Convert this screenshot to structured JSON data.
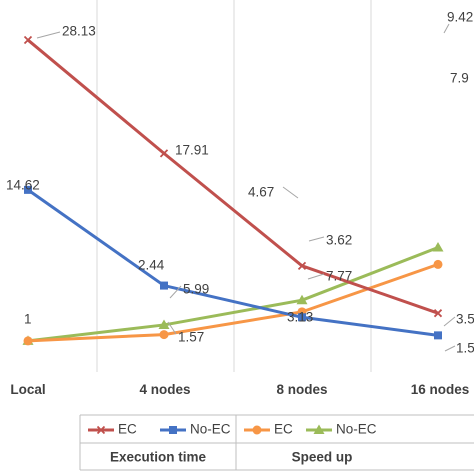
{
  "chart_data": {
    "type": "line",
    "categories": [
      "Local",
      "4 nodes",
      "8 nodes",
      "16 nodes"
    ],
    "category_labels": [
      "Local",
      "4 nodes",
      "8 nodes",
      "16 nodes"
    ],
    "groups": [
      {
        "label": "Execution time",
        "series_indices": [
          0,
          1
        ]
      },
      {
        "label": "Speed up",
        "series_indices": [
          2,
          3
        ]
      }
    ],
    "series": [
      {
        "name": "EC",
        "group": "Execution time",
        "color": "#C0504D",
        "marker": "x",
        "values": [
          28.13,
          17.91,
          7.77,
          3.5
        ],
        "labels": [
          "28.13",
          "17.91",
          "7.77",
          "3.5"
        ]
      },
      {
        "name": "No-EC",
        "group": "Execution time",
        "color": "#4472C4",
        "marker": "square",
        "values": [
          14.62,
          5.99,
          3.13,
          1.5
        ],
        "labels": [
          "14.62",
          "5.99",
          "3.13",
          "1.5"
        ]
      },
      {
        "name": "EC",
        "group": "Speed up",
        "color": "#F79646",
        "marker": "circle",
        "values": [
          1,
          1.57,
          3.62,
          7.9
        ],
        "labels": [
          "",
          "1.57",
          "3.62",
          "7.9"
        ]
      },
      {
        "name": "No-EC",
        "group": "Speed up",
        "color": "#9BBB59",
        "marker": "triangle",
        "values": [
          1,
          2.44,
          4.67,
          9.42
        ],
        "labels": [
          "1",
          "2.44",
          "4.67",
          "9.42"
        ]
      }
    ],
    "grid": "vertical",
    "legend_placement": "bottom"
  }
}
